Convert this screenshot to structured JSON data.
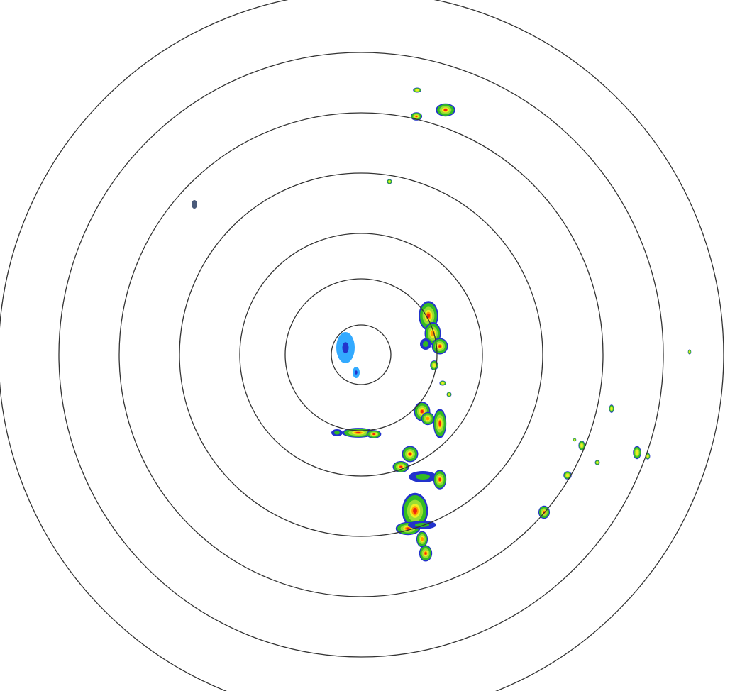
{
  "radar": {
    "range_ring_count": 7,
    "ring_color": "#333333",
    "background": "#ffffff",
    "reflectivity_colors": {
      "light_blue": "#33aaff",
      "blue": "#2233cc",
      "slate": "#4a5a7a",
      "green": "#33bb22",
      "light_green": "#99dd33",
      "yellow": "#eeee22",
      "orange": "#ff9900",
      "red": "#ee2211"
    }
  }
}
